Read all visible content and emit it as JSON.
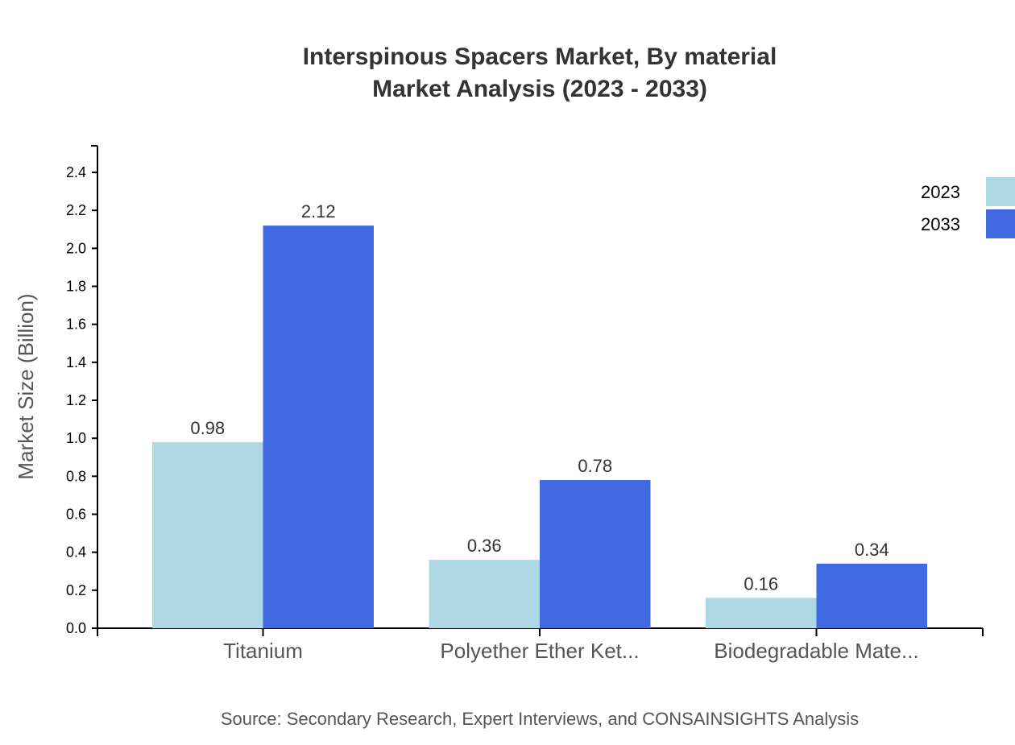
{
  "chart_data": {
    "type": "bar",
    "title": "Interspinous Spacers Market, By material",
    "subtitle": "Market Analysis (2023 - 2033)",
    "ylabel": "Market Size (Billion)",
    "xlabel": "",
    "ylim": [
      0,
      2.54
    ],
    "yticks": [
      "0.0",
      "0.2",
      "0.4",
      "0.6",
      "0.8",
      "1.0",
      "1.2",
      "1.4",
      "1.6",
      "1.8",
      "2.0",
      "2.2",
      "2.4"
    ],
    "categories": [
      "Titanium",
      "Polyether Ether Ket...",
      "Biodegradable Mate..."
    ],
    "series": [
      {
        "name": "2023",
        "color": "#add8e6",
        "values": [
          0.98,
          0.36,
          0.16
        ],
        "labels": [
          "0.98",
          "0.36",
          "0.16"
        ]
      },
      {
        "name": "2033",
        "color": "#4169e1",
        "values": [
          2.12,
          0.78,
          0.34
        ],
        "labels": [
          "2.12",
          "0.78",
          "0.34"
        ]
      }
    ],
    "legend": "top-right",
    "grid": false,
    "source": "Source: Secondary Research, Expert Interviews, and CONSAINSIGHTS Analysis"
  }
}
